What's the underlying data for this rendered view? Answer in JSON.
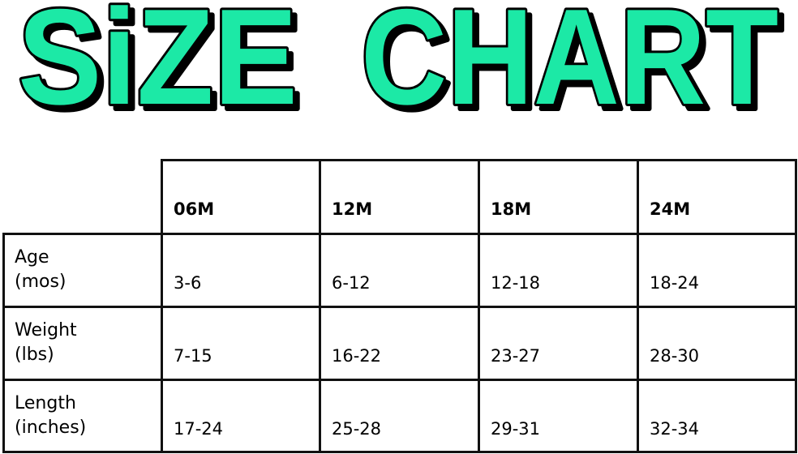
{
  "title": {
    "word1": "SiZE",
    "word2": "CHART",
    "fill_color": "#1de9a6",
    "outline_color": "#000000"
  },
  "table": {
    "columns": [
      "06M",
      "12M",
      "18M",
      "24M"
    ],
    "rows": [
      {
        "label_line1": "Age",
        "label_line2": "(mos)",
        "values": [
          "3-6",
          "6-12",
          "12-18",
          "18-24"
        ]
      },
      {
        "label_line1": "Weight",
        "label_line2": "(lbs)",
        "values": [
          "7-15",
          "16-22",
          "23-27",
          "28-30"
        ]
      },
      {
        "label_line1": "Length",
        "label_line2": "(inches)",
        "values": [
          "17-24",
          "25-28",
          "29-31",
          "32-34"
        ]
      }
    ]
  }
}
